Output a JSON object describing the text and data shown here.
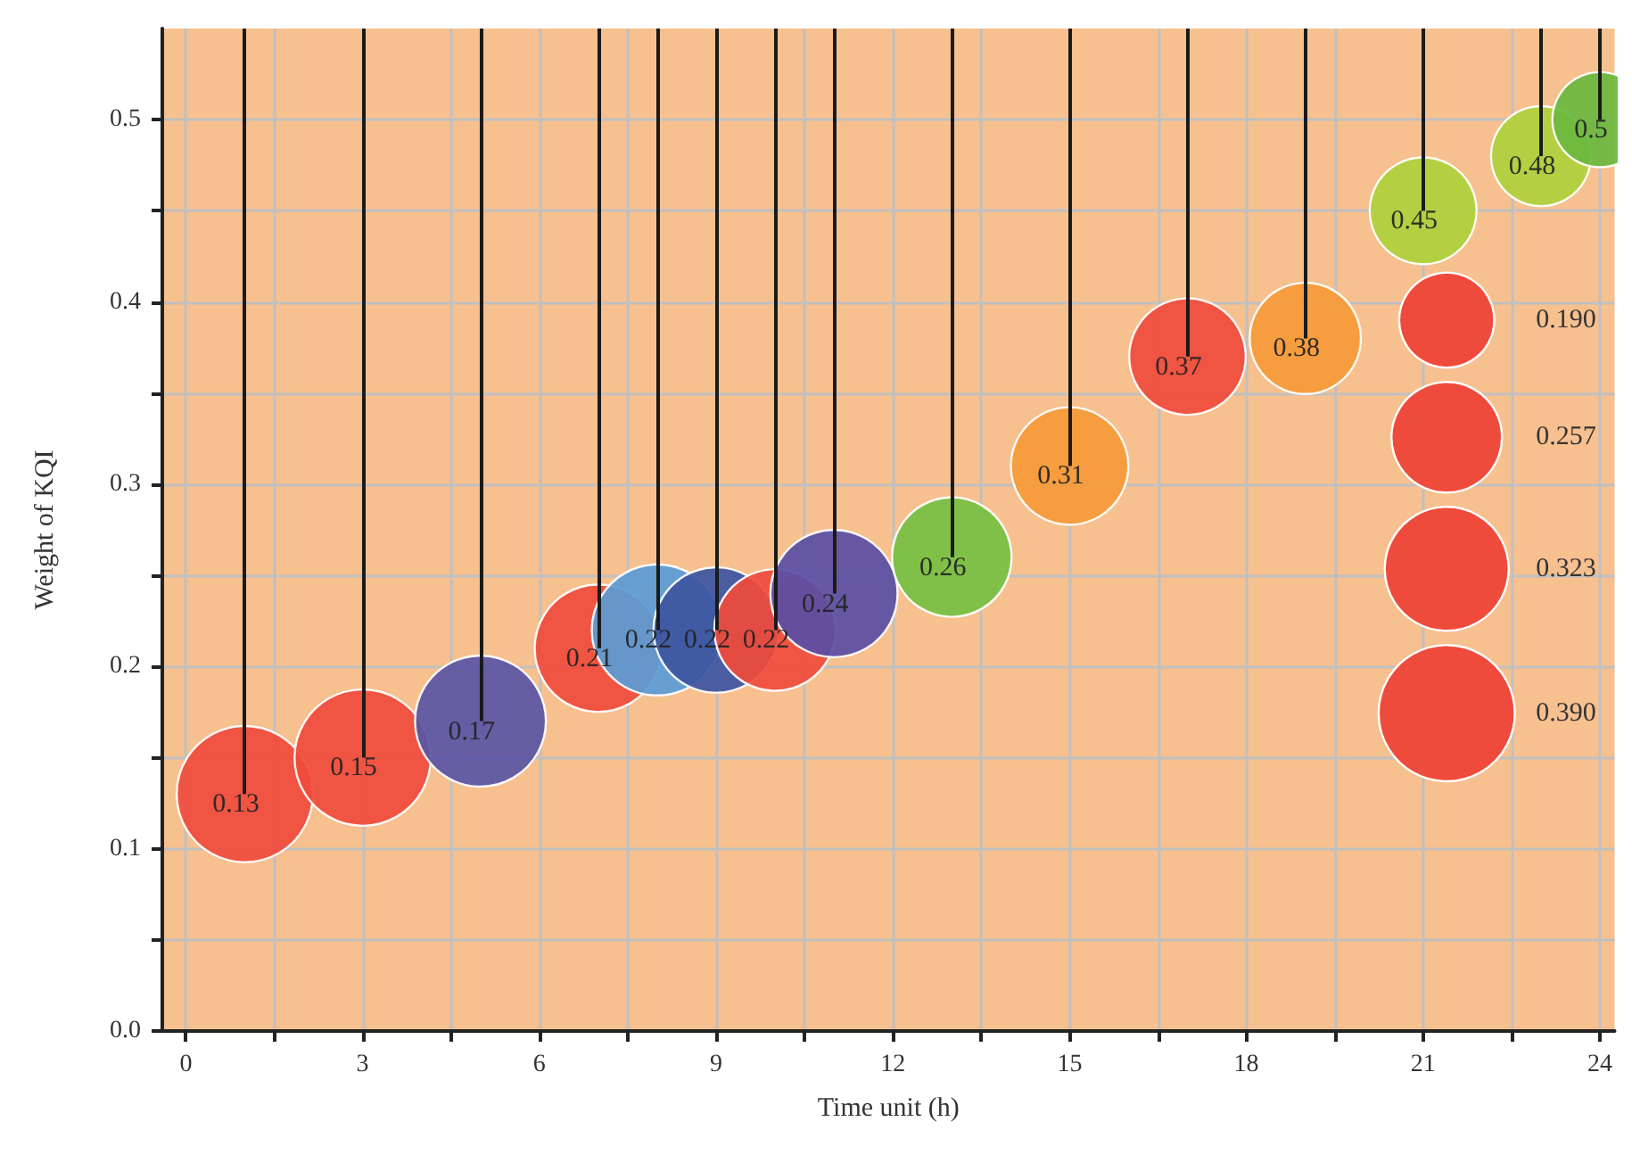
{
  "chart_data": {
    "type": "bubble",
    "xlabel": "Time unit (h)",
    "ylabel": "Weight of KQI",
    "x": [
      1,
      3,
      5,
      7,
      8,
      9,
      10,
      11,
      13,
      15,
      17,
      19,
      21,
      23,
      24
    ],
    "values": [
      0.13,
      0.15,
      0.17,
      0.21,
      0.22,
      0.22,
      0.22,
      0.24,
      0.26,
      0.31,
      0.37,
      0.38,
      0.45,
      0.48,
      0.5
    ],
    "sizes": [
      0.39,
      0.39,
      0.36,
      0.34,
      0.36,
      0.33,
      0.31,
      0.34,
      0.3,
      0.29,
      0.285,
      0.26,
      0.24,
      0.21,
      0.19
    ],
    "colors": [
      "#ef4b3c",
      "#ef4b3c",
      "#5a55a5",
      "#ef4b3c",
      "#5b9bd5",
      "#3d55a0",
      "#ef4b3c",
      "#5a4fa5",
      "#76c043",
      "#f59a3a",
      "#ef4b3c",
      "#f59a3a",
      "#aed13c",
      "#aed13c",
      "#6ab83e"
    ],
    "size_legend": [
      {
        "value": 0.19,
        "label": "0.190"
      },
      {
        "value": 0.257,
        "label": "0.257"
      },
      {
        "value": 0.323,
        "label": "0.323"
      },
      {
        "value": 0.39,
        "label": "0.390"
      }
    ],
    "data_labels": true,
    "grid": true,
    "xlim": [
      -0.4,
      24.25
    ],
    "xticks": [
      0,
      {
        "value": 1.5,
        "label": null
      },
      3,
      {
        "value": 4.5,
        "label": null
      },
      6,
      {
        "value": 7.5,
        "label": null
      },
      9,
      {
        "value": 10.5,
        "label": null
      },
      12,
      {
        "value": 13.5,
        "label": null
      },
      15,
      {
        "value": 16.5,
        "label": null
      },
      18,
      {
        "value": 19.5,
        "label": null
      },
      21,
      {
        "value": 22.5,
        "label": null
      },
      24
    ],
    "ylim": [
      0,
      0.55
    ],
    "yticks": [
      {
        "value": 0,
        "label": "0.0"
      },
      {
        "value": 0.05,
        "label": null
      },
      0.1,
      {
        "value": 0.15,
        "label": null
      },
      0.2,
      {
        "value": 0.25,
        "label": null
      },
      0.3,
      {
        "value": 0.35,
        "label": null
      },
      0.4,
      {
        "value": 0.45,
        "label": null
      },
      0.5
    ]
  }
}
